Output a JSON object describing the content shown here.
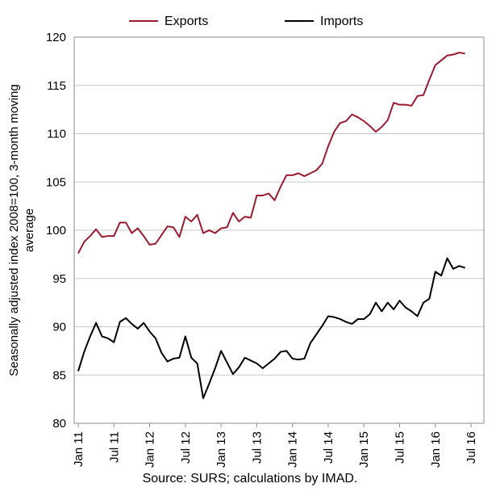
{
  "chart_data": {
    "type": "line",
    "ylabel_line1": "Seasonally adjusted index 2008=100, 3-month moving",
    "ylabel_line2": "average",
    "source": "Source: SURS; calculations by IMAD.",
    "ylim": [
      80,
      120
    ],
    "yticks": [
      "80",
      "85",
      "90",
      "95",
      "100",
      "105",
      "110",
      "115",
      "120"
    ],
    "xticks": [
      "Jan 11",
      "Jul 11",
      "Jan 12",
      "Jul 12",
      "Jan 13",
      "Jul 13",
      "Jan 14",
      "Jul 14",
      "Jan 15",
      "Jul 15",
      "Jan 16",
      "Jul 16"
    ],
    "legend_position": "top",
    "grid": "horizontal",
    "colors": {
      "exports": "#9b1b30",
      "imports": "#000000",
      "grid": "#c8c8c8"
    },
    "series": [
      {
        "name": "Exports",
        "values": [
          97.6,
          98.8,
          99.4,
          100.1,
          99.3,
          99.4,
          99.4,
          100.8,
          100.8,
          99.7,
          100.2,
          99.4,
          98.5,
          98.6,
          99.5,
          100.4,
          100.3,
          99.3,
          101.4,
          100.9,
          101.6,
          99.7,
          100.0,
          99.7,
          100.2,
          100.3,
          101.8,
          100.9,
          101.4,
          101.3,
          103.6,
          103.6,
          103.8,
          103.1,
          104.5,
          105.7,
          105.7,
          105.9,
          105.6,
          105.9,
          106.2,
          106.9,
          108.7,
          110.2,
          111.1,
          111.3,
          112.0,
          111.7,
          111.3,
          110.8,
          110.2,
          110.7,
          111.4,
          113.2,
          113.0,
          113.0,
          112.9,
          113.9,
          114.0,
          115.6,
          117.1,
          117.6,
          118.1,
          118.2,
          118.4,
          118.3
        ]
      },
      {
        "name": "Imports",
        "values": [
          85.4,
          87.4,
          89.0,
          90.4,
          89.0,
          88.8,
          88.4,
          90.5,
          90.9,
          90.3,
          89.8,
          90.4,
          89.5,
          88.8,
          87.3,
          86.4,
          86.7,
          86.8,
          89.0,
          86.8,
          86.2,
          82.6,
          84.1,
          85.7,
          87.5,
          86.3,
          85.1,
          85.8,
          86.8,
          86.5,
          86.2,
          85.7,
          86.2,
          86.7,
          87.4,
          87.5,
          86.7,
          86.6,
          86.7,
          88.3,
          89.2,
          90.1,
          91.1,
          91.0,
          90.8,
          90.5,
          90.3,
          90.8,
          90.8,
          91.3,
          92.5,
          91.6,
          92.5,
          91.8,
          92.7,
          92.0,
          91.6,
          91.1,
          92.5,
          92.9,
          95.7,
          95.3,
          97.1,
          96.0,
          96.3,
          96.1
        ]
      }
    ]
  }
}
